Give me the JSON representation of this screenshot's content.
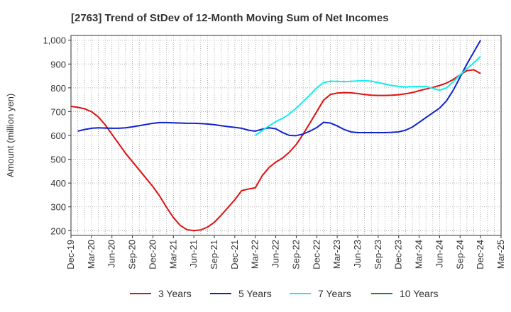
{
  "chart_data": {
    "type": "line",
    "title": "[2763]  Trend of StDev of 12-Month Moving Sum of Net Incomes",
    "xlabel": "",
    "ylabel": "Amount (million yen)",
    "ylim": [
      180,
      1020
    ],
    "yticks": [
      200,
      300,
      400,
      500,
      600,
      700,
      800,
      900,
      1000
    ],
    "ytick_labels": [
      "200",
      "300",
      "400",
      "500",
      "600",
      "700",
      "800",
      "900",
      "1,000"
    ],
    "xticks": [
      "Dec-19",
      "Mar-20",
      "Jun-20",
      "Sep-20",
      "Dec-20",
      "Mar-21",
      "Jun-21",
      "Sep-21",
      "Dec-21",
      "Mar-22",
      "Jun-22",
      "Sep-22",
      "Dec-22",
      "Mar-23",
      "Jun-23",
      "Sep-23",
      "Dec-23",
      "Mar-24",
      "Jun-24",
      "Sep-24",
      "Dec-24",
      "Mar-25"
    ],
    "grid": true,
    "legend_position": "bottom",
    "series": [
      {
        "name": "3 Years",
        "color": "#dd1111",
        "points": [
          [
            "2019-12",
            722
          ],
          [
            "2020-01",
            718
          ],
          [
            "2020-02",
            712
          ],
          [
            "2020-03",
            700
          ],
          [
            "2020-04",
            678
          ],
          [
            "2020-05",
            645
          ],
          [
            "2020-06",
            605
          ],
          [
            "2020-07",
            565
          ],
          [
            "2020-08",
            525
          ],
          [
            "2020-09",
            490
          ],
          [
            "2020-10",
            455
          ],
          [
            "2020-11",
            420
          ],
          [
            "2020-12",
            385
          ],
          [
            "2021-01",
            345
          ],
          [
            "2021-02",
            298
          ],
          [
            "2021-03",
            255
          ],
          [
            "2021-04",
            222
          ],
          [
            "2021-05",
            204
          ],
          [
            "2021-06",
            200
          ],
          [
            "2021-07",
            203
          ],
          [
            "2021-08",
            215
          ],
          [
            "2021-09",
            235
          ],
          [
            "2021-10",
            265
          ],
          [
            "2021-11",
            297
          ],
          [
            "2021-12",
            330
          ],
          [
            "2022-01",
            368
          ],
          [
            "2022-02",
            375
          ],
          [
            "2022-03",
            380
          ],
          [
            "2022-04",
            430
          ],
          [
            "2022-05",
            465
          ],
          [
            "2022-06",
            488
          ],
          [
            "2022-07",
            505
          ],
          [
            "2022-08",
            530
          ],
          [
            "2022-09",
            562
          ],
          [
            "2022-10",
            605
          ],
          [
            "2022-11",
            652
          ],
          [
            "2022-12",
            700
          ],
          [
            "2023-01",
            748
          ],
          [
            "2023-02",
            772
          ],
          [
            "2023-03",
            778
          ],
          [
            "2023-04",
            780
          ],
          [
            "2023-05",
            779
          ],
          [
            "2023-06",
            776
          ],
          [
            "2023-07",
            772
          ],
          [
            "2023-08",
            769
          ],
          [
            "2023-09",
            768
          ],
          [
            "2023-10",
            768
          ],
          [
            "2023-11",
            769
          ],
          [
            "2023-12",
            771
          ],
          [
            "2024-01",
            775
          ],
          [
            "2024-02",
            780
          ],
          [
            "2024-03",
            788
          ],
          [
            "2024-04",
            795
          ],
          [
            "2024-05",
            802
          ],
          [
            "2024-06",
            810
          ],
          [
            "2024-07",
            820
          ],
          [
            "2024-08",
            835
          ],
          [
            "2024-09",
            855
          ],
          [
            "2024-10",
            872
          ],
          [
            "2024-11",
            876
          ],
          [
            "2024-12",
            860
          ]
        ]
      },
      {
        "name": "5 Years",
        "color": "#1122cc",
        "points": [
          [
            "2020-01",
            618
          ],
          [
            "2020-02",
            625
          ],
          [
            "2020-03",
            630
          ],
          [
            "2020-04",
            632
          ],
          [
            "2020-05",
            631
          ],
          [
            "2020-06",
            630
          ],
          [
            "2020-07",
            630
          ],
          [
            "2020-08",
            632
          ],
          [
            "2020-09",
            636
          ],
          [
            "2020-10",
            641
          ],
          [
            "2020-11",
            646
          ],
          [
            "2020-12",
            651
          ],
          [
            "2021-01",
            654
          ],
          [
            "2021-02",
            654
          ],
          [
            "2021-03",
            653
          ],
          [
            "2021-04",
            652
          ],
          [
            "2021-05",
            651
          ],
          [
            "2021-06",
            651
          ],
          [
            "2021-07",
            650
          ],
          [
            "2021-08",
            648
          ],
          [
            "2021-09",
            645
          ],
          [
            "2021-10",
            641
          ],
          [
            "2021-11",
            637
          ],
          [
            "2021-12",
            634
          ],
          [
            "2022-01",
            630
          ],
          [
            "2022-02",
            622
          ],
          [
            "2022-03",
            618
          ],
          [
            "2022-04",
            626
          ],
          [
            "2022-05",
            632
          ],
          [
            "2022-06",
            628
          ],
          [
            "2022-07",
            612
          ],
          [
            "2022-08",
            600
          ],
          [
            "2022-09",
            599
          ],
          [
            "2022-10",
            606
          ],
          [
            "2022-11",
            618
          ],
          [
            "2022-12",
            633
          ],
          [
            "2023-01",
            655
          ],
          [
            "2023-02",
            652
          ],
          [
            "2023-03",
            640
          ],
          [
            "2023-04",
            625
          ],
          [
            "2023-05",
            615
          ],
          [
            "2023-06",
            612
          ],
          [
            "2023-07",
            612
          ],
          [
            "2023-08",
            612
          ],
          [
            "2023-09",
            612
          ],
          [
            "2023-10",
            612
          ],
          [
            "2023-11",
            613
          ],
          [
            "2023-12",
            615
          ],
          [
            "2024-01",
            622
          ],
          [
            "2024-02",
            635
          ],
          [
            "2024-03",
            655
          ],
          [
            "2024-04",
            675
          ],
          [
            "2024-05",
            695
          ],
          [
            "2024-06",
            715
          ],
          [
            "2024-07",
            745
          ],
          [
            "2024-08",
            790
          ],
          [
            "2024-09",
            845
          ],
          [
            "2024-10",
            900
          ],
          [
            "2024-11",
            950
          ],
          [
            "2024-12",
            1000
          ]
        ]
      },
      {
        "name": "7 Years",
        "color": "#11eeee",
        "points": [
          [
            "2022-03",
            600
          ],
          [
            "2022-04",
            620
          ],
          [
            "2022-05",
            640
          ],
          [
            "2022-06",
            658
          ],
          [
            "2022-07",
            672
          ],
          [
            "2022-08",
            690
          ],
          [
            "2022-09",
            715
          ],
          [
            "2022-10",
            742
          ],
          [
            "2022-11",
            770
          ],
          [
            "2022-12",
            800
          ],
          [
            "2023-01",
            822
          ],
          [
            "2023-02",
            828
          ],
          [
            "2023-03",
            827
          ],
          [
            "2023-04",
            826
          ],
          [
            "2023-05",
            827
          ],
          [
            "2023-06",
            829
          ],
          [
            "2023-07",
            830
          ],
          [
            "2023-08",
            828
          ],
          [
            "2023-09",
            822
          ],
          [
            "2023-10",
            816
          ],
          [
            "2023-11",
            810
          ],
          [
            "2023-12",
            806
          ],
          [
            "2024-01",
            804
          ],
          [
            "2024-02",
            805
          ],
          [
            "2024-03",
            806
          ],
          [
            "2024-04",
            806
          ],
          [
            "2024-05",
            798
          ],
          [
            "2024-06",
            790
          ],
          [
            "2024-07",
            800
          ],
          [
            "2024-08",
            825
          ],
          [
            "2024-09",
            855
          ],
          [
            "2024-10",
            880
          ],
          [
            "2024-11",
            905
          ],
          [
            "2024-12",
            932
          ]
        ]
      },
      {
        "name": "10 Years",
        "color": "#228822",
        "points": []
      }
    ]
  }
}
